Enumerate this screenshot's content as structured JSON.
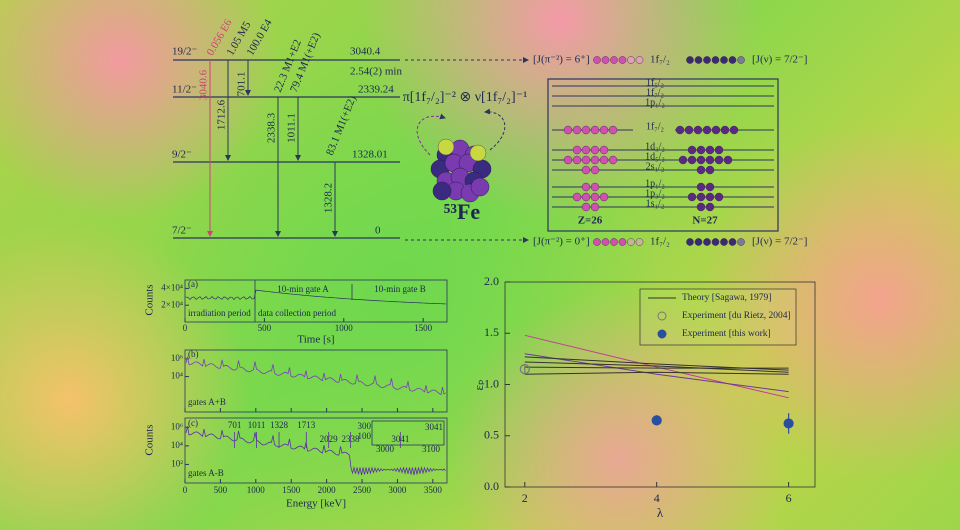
{
  "level_scheme": {
    "levels": [
      {
        "spin": "19/2⁻",
        "energy": "3040.4",
        "half_life": "2.54(2) min"
      },
      {
        "spin": "11/2⁻",
        "energy": "2339.24"
      },
      {
        "spin": "9/2⁻",
        "energy": "1328.01"
      },
      {
        "spin": "7/2⁻",
        "energy": "0"
      }
    ],
    "transitions": [
      "3040.6",
      "1712.6",
      "701.1",
      "2338.3",
      "1011.1",
      "1328.2"
    ],
    "multipolarities": [
      "0.056 E6",
      "1.05 M5",
      "100.0 E4",
      "22.3 M1+E2",
      "79.4 M1(+E2)",
      "83.1 M1(+E2)"
    ],
    "configurations": [
      [
        "[J(π⁻²) = 6⁺]",
        "1f₇/₂",
        "[J(ν) = 7/2⁻]"
      ],
      [
        "[J(π⁻²) = 0⁺]",
        "1f₇/₂",
        "[J(ν) = 7/2⁻]"
      ]
    ]
  },
  "nucleus": {
    "formula": "π[1f₇/₂]⁻² ⊗ ν[1f₇/₂]⁻¹",
    "label": "⁵³Fe"
  },
  "shell_model": {
    "orbitals": [
      "1f₅/₂",
      "1f₇/₂",
      "1p₁/₂",
      "1f₇/₂",
      "1d₃/₂",
      "1d₅/₂",
      "2s₁/₂",
      "1p₁/₂",
      "1p₃/₂",
      "1s₁/₂"
    ],
    "proton": "Z=26",
    "neutron": "N=27"
  },
  "spectra": {
    "ylabel": "Counts",
    "time": {
      "tag": "(a)",
      "xlim": [
        0,
        1650
      ],
      "xticks": [
        0,
        500,
        1000,
        1500
      ],
      "xlabel": "Time [s]",
      "ylim": [
        0,
        50000
      ],
      "yticks": [
        {
          "value": 40000,
          "label": "4×10⁴"
        },
        {
          "value": 20000,
          "label": "2×10⁴"
        }
      ],
      "labels": [
        "irradiation period",
        "data collection period",
        "10-min gate A",
        "10-min gate B"
      ]
    },
    "energy": {
      "xlim": [
        0,
        3700
      ],
      "xticks": [
        0,
        500,
        1000,
        1500,
        2000,
        2500,
        3000,
        3500
      ],
      "xlabel": "Energy [keV]",
      "ylim": [
        1,
        10000000
      ],
      "panels": [
        {
          "tag": "(b)",
          "gate": "gates A+B",
          "yticks": [
            {
              "value": 1000000,
              "label": "10⁶"
            },
            {
              "value": 10000,
              "label": "10⁴"
            }
          ]
        },
        {
          "tag": "(c)",
          "gate": "gates A-B",
          "yticks": [
            {
              "value": 1000000,
              "label": "10⁶"
            },
            {
              "value": 10000,
              "label": "10⁴"
            },
            {
              "value": 100,
              "label": "10²"
            }
          ],
          "peaks": [
            701,
            1011,
            1328,
            1713,
            2029,
            2338,
            3041
          ]
        }
      ],
      "inset": {
        "yticks": [
          300,
          100
        ],
        "xticks": [
          3000,
          3100
        ],
        "peak": "3041"
      }
    }
  },
  "chart_data": {
    "type": "line",
    "xlabel": "λ",
    "ylabel": "εₚ",
    "xlim": [
      1.7,
      6.4
    ],
    "xticks": [
      2,
      4,
      6
    ],
    "ylim": [
      0,
      2
    ],
    "yticks": [
      {
        "value": 0,
        "label": "0.0"
      },
      0.5,
      {
        "value": 1,
        "label": "1.0"
      },
      1.5,
      {
        "value": 2,
        "label": "2.0"
      }
    ],
    "theory": {
      "name": "Theory [Sagawa, 1979]",
      "x": [
        2,
        4,
        6
      ],
      "curves": [
        {
          "color": "#c03a9a",
          "values": [
            1.48,
            1.17,
            0.87
          ]
        },
        {
          "color": "#6a3a9a",
          "values": [
            1.3,
            1.1,
            0.93
          ]
        },
        {
          "color": "#333333",
          "values": [
            1.27,
            1.2,
            1.14
          ]
        },
        {
          "color": "#333333",
          "values": [
            1.22,
            1.18,
            1.12
          ]
        },
        {
          "color": "#333333",
          "values": [
            1.17,
            1.16,
            1.16
          ]
        },
        {
          "color": "#333333",
          "values": [
            1.1,
            1.12,
            1.1
          ]
        }
      ]
    },
    "experiments": [
      {
        "name": "Experiment [du Rietz, 2004]",
        "marker": "open",
        "color": "#777777",
        "x": [
          2
        ],
        "values": [
          1.15
        ],
        "errors": [
          0.04
        ]
      },
      {
        "name": "Experiment [this work]",
        "marker": "filled",
        "color": "#2a4fa0",
        "x": [
          4,
          6
        ],
        "values": [
          0.65,
          0.62
        ],
        "errors": [
          0.05,
          0.1
        ]
      }
    ]
  }
}
